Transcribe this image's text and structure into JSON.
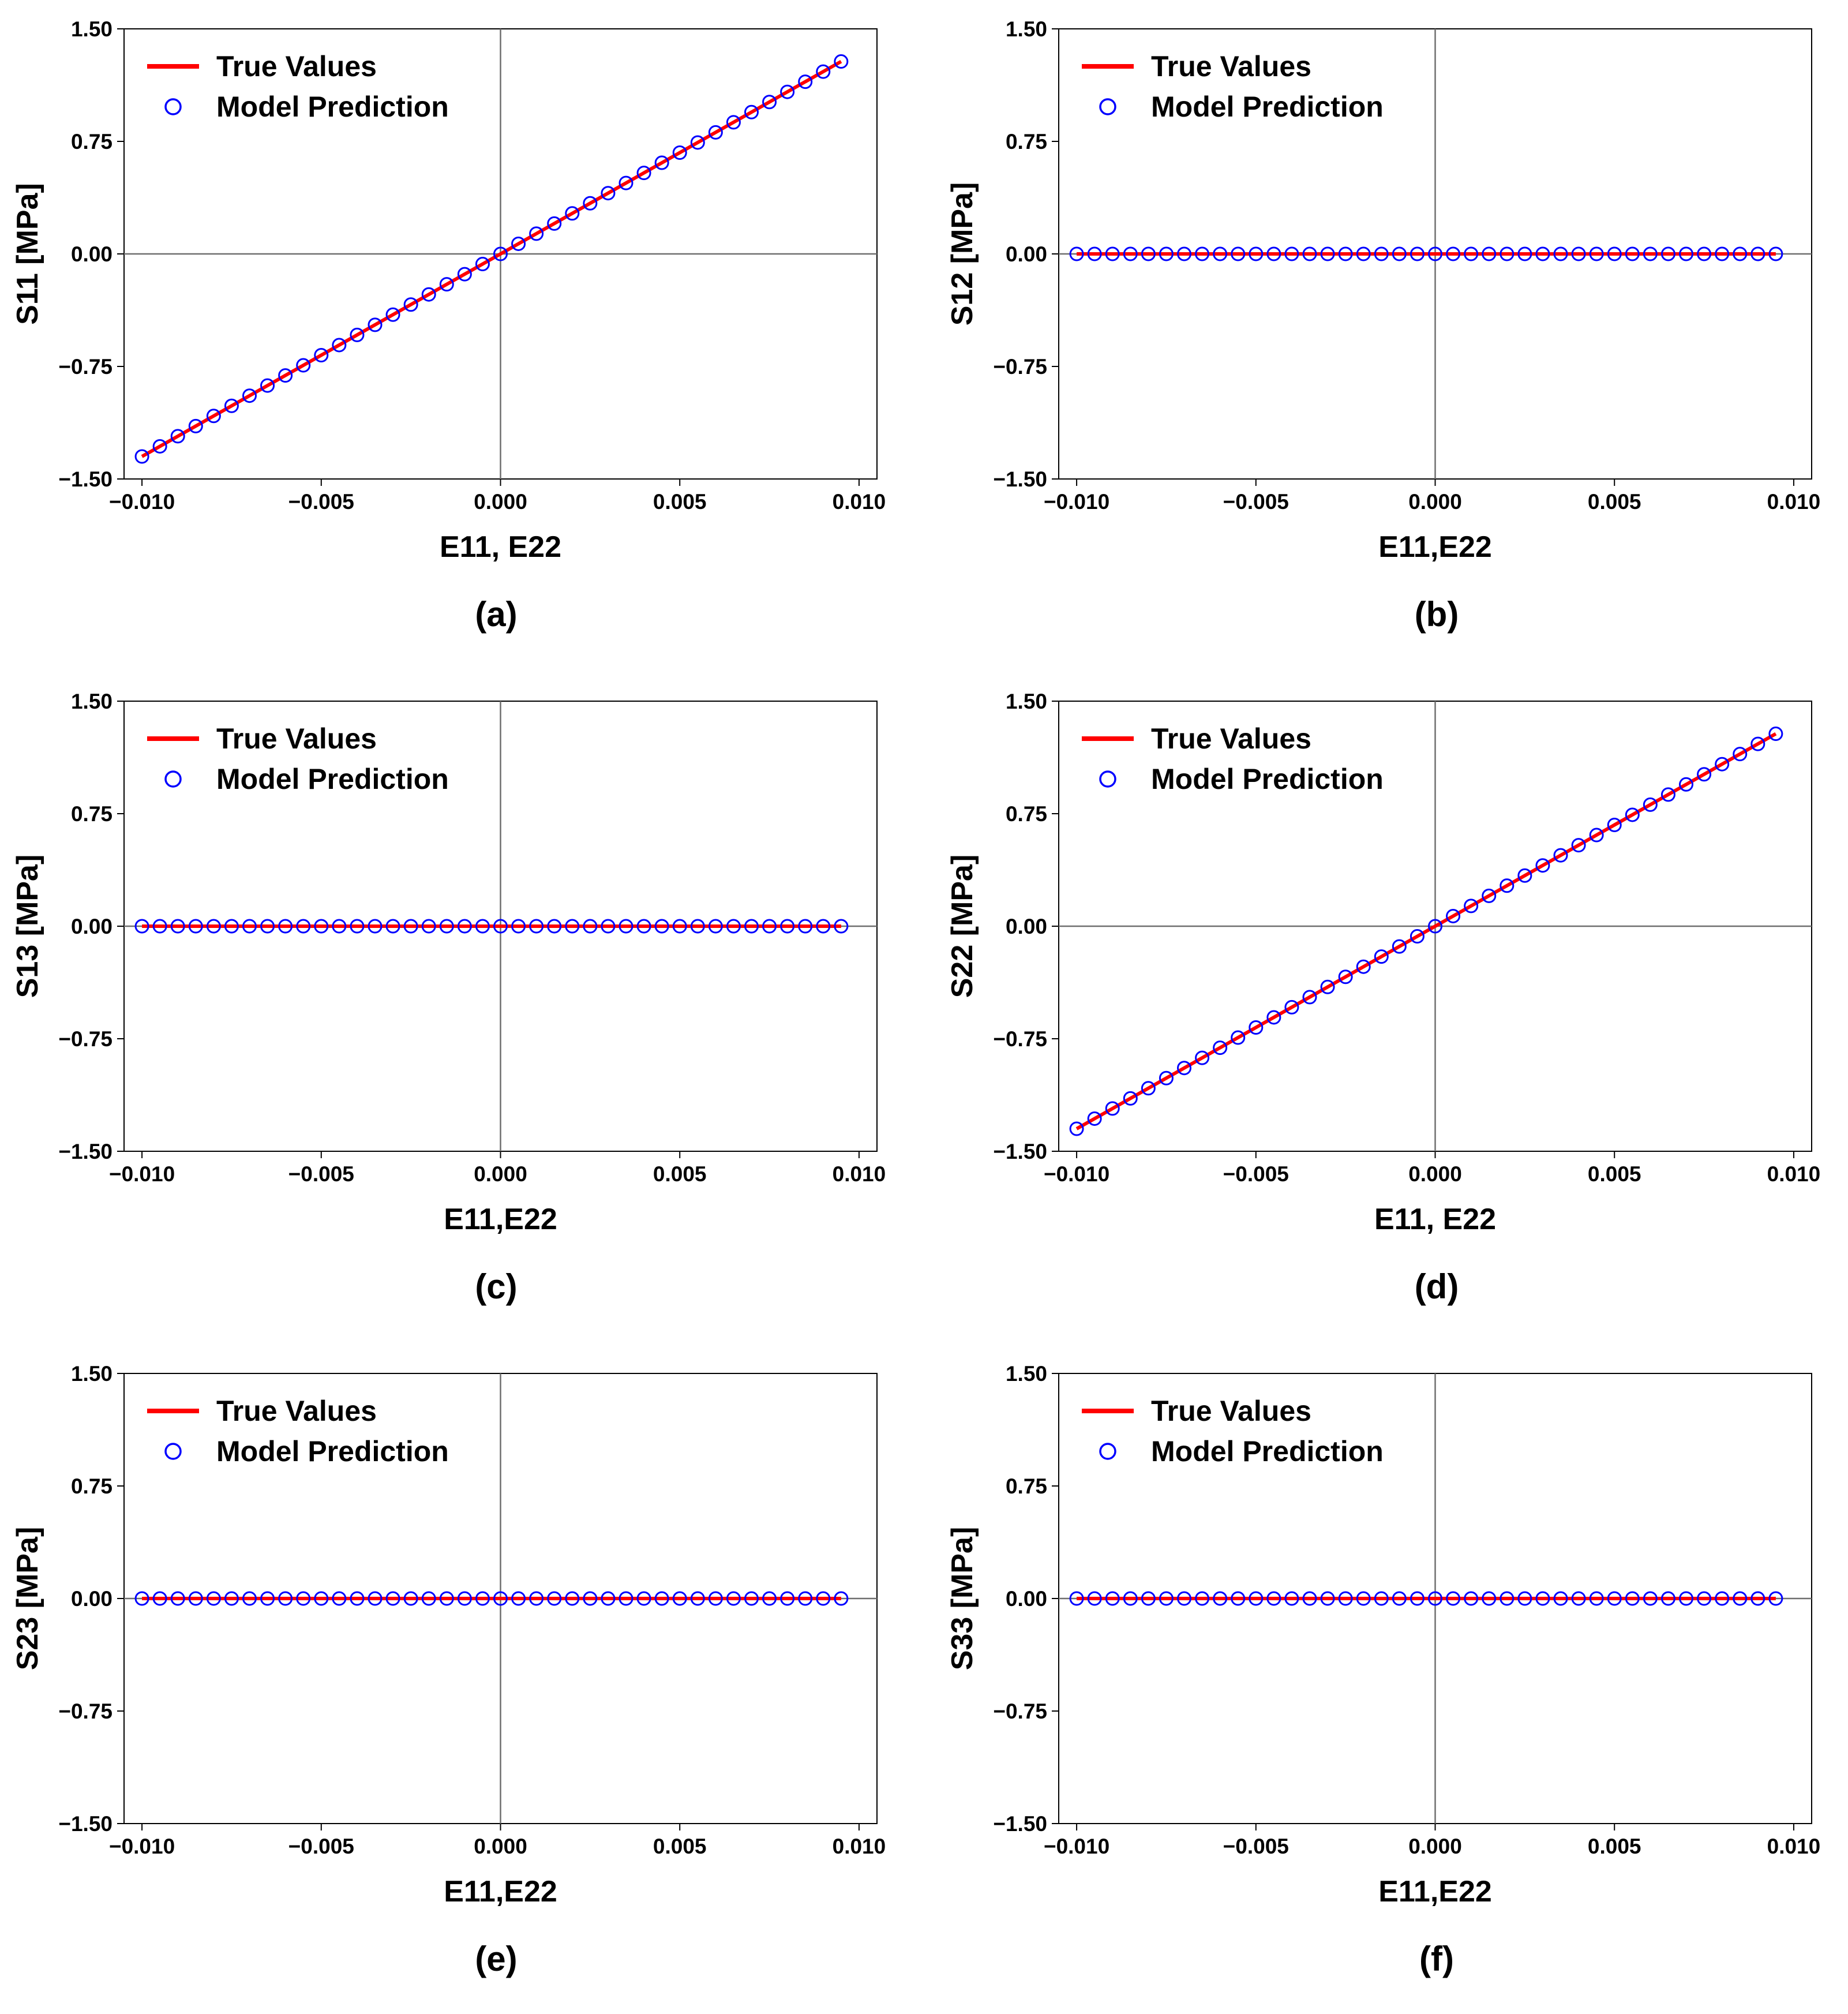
{
  "chart_data": [
    {
      "panel": "a",
      "type": "line",
      "caption": "(a)",
      "xlabel": "E11, E22",
      "ylabel": "S11 [MPa]",
      "xlim": [
        -0.0105,
        0.0105
      ],
      "ylim": [
        -1.5,
        1.5
      ],
      "xticks": [
        "−0.010",
        "−0.005",
        "0.000",
        "0.005",
        "0.010"
      ],
      "yticks": [
        "−1.50",
        "−0.75",
        "0.00",
        "0.75",
        "1.50"
      ],
      "legend": [
        "True Values",
        "Model Prediction"
      ],
      "legend_position": "top-left",
      "slope": 135,
      "series": [
        {
          "name": "True Values",
          "style": "line",
          "color": "#ff0000",
          "x": [
            -0.01,
            0.0095
          ],
          "y": [
            -1.35,
            1.2825
          ]
        },
        {
          "name": "Model Prediction",
          "style": "open-circle",
          "color": "#0000ff",
          "x_start": -0.01,
          "x_step": 0.0005,
          "count": 40
        }
      ]
    },
    {
      "panel": "b",
      "type": "line",
      "caption": "(b)",
      "xlabel": "E11,E22",
      "ylabel": "S12 [MPa]",
      "xlim": [
        -0.0105,
        0.0105
      ],
      "ylim": [
        -1.5,
        1.5
      ],
      "xticks": [
        "−0.010",
        "−0.005",
        "0.000",
        "0.005",
        "0.010"
      ],
      "yticks": [
        "−1.50",
        "−0.75",
        "0.00",
        "0.75",
        "1.50"
      ],
      "legend": [
        "True Values",
        "Model Prediction"
      ],
      "legend_position": "top-left",
      "slope": 0,
      "series": [
        {
          "name": "True Values",
          "style": "line",
          "color": "#ff0000",
          "x": [
            -0.01,
            0.0095
          ],
          "y": [
            0,
            0
          ]
        },
        {
          "name": "Model Prediction",
          "style": "open-circle",
          "color": "#0000ff",
          "x_start": -0.01,
          "x_step": 0.0005,
          "count": 40
        }
      ]
    },
    {
      "panel": "c",
      "type": "line",
      "caption": "(c)",
      "xlabel": "E11,E22",
      "ylabel": "S13 [MPa]",
      "xlim": [
        -0.0105,
        0.0105
      ],
      "ylim": [
        -1.5,
        1.5
      ],
      "xticks": [
        "−0.010",
        "−0.005",
        "0.000",
        "0.005",
        "0.010"
      ],
      "yticks": [
        "−1.50",
        "−0.75",
        "0.00",
        "0.75",
        "1.50"
      ],
      "legend": [
        "True Values",
        "Model Prediction"
      ],
      "legend_position": "top-left",
      "slope": 0,
      "series": [
        {
          "name": "True Values",
          "style": "line",
          "color": "#ff0000",
          "x": [
            -0.01,
            0.0095
          ],
          "y": [
            0,
            0
          ]
        },
        {
          "name": "Model Prediction",
          "style": "open-circle",
          "color": "#0000ff",
          "x_start": -0.01,
          "x_step": 0.0005,
          "count": 40
        }
      ]
    },
    {
      "panel": "d",
      "type": "line",
      "caption": "(d)",
      "xlabel": "E11, E22",
      "ylabel": "S22 [MPa]",
      "xlim": [
        -0.0105,
        0.0105
      ],
      "ylim": [
        -1.5,
        1.5
      ],
      "xticks": [
        "−0.010",
        "−0.005",
        "0.000",
        "0.005",
        "0.010"
      ],
      "yticks": [
        "−1.50",
        "−0.75",
        "0.00",
        "0.75",
        "1.50"
      ],
      "legend": [
        "True Values",
        "Model Prediction"
      ],
      "legend_position": "top-left",
      "slope": 135,
      "series": [
        {
          "name": "True Values",
          "style": "line",
          "color": "#ff0000",
          "x": [
            -0.01,
            0.0095
          ],
          "y": [
            -1.35,
            1.2825
          ]
        },
        {
          "name": "Model Prediction",
          "style": "open-circle",
          "color": "#0000ff",
          "x_start": -0.01,
          "x_step": 0.0005,
          "count": 40
        }
      ]
    },
    {
      "panel": "e",
      "type": "line",
      "caption": "(e)",
      "xlabel": "E11,E22",
      "ylabel": "S23 [MPa]",
      "xlim": [
        -0.0105,
        0.0105
      ],
      "ylim": [
        -1.5,
        1.5
      ],
      "xticks": [
        "−0.010",
        "−0.005",
        "0.000",
        "0.005",
        "0.010"
      ],
      "yticks": [
        "−1.50",
        "−0.75",
        "0.00",
        "0.75",
        "1.50"
      ],
      "legend": [
        "True Values",
        "Model Prediction"
      ],
      "legend_position": "top-left",
      "slope": 0,
      "series": [
        {
          "name": "True Values",
          "style": "line",
          "color": "#ff0000",
          "x": [
            -0.01,
            0.0095
          ],
          "y": [
            0,
            0
          ]
        },
        {
          "name": "Model Prediction",
          "style": "open-circle",
          "color": "#0000ff",
          "x_start": -0.01,
          "x_step": 0.0005,
          "count": 40
        }
      ]
    },
    {
      "panel": "f",
      "type": "line",
      "caption": "(f)",
      "xlabel": "E11,E22",
      "ylabel": "S33 [MPa]",
      "xlim": [
        -0.0105,
        0.0105
      ],
      "ylim": [
        -1.5,
        1.5
      ],
      "xticks": [
        "−0.010",
        "−0.005",
        "0.000",
        "0.005",
        "0.010"
      ],
      "yticks": [
        "−1.50",
        "−0.75",
        "0.00",
        "0.75",
        "1.50"
      ],
      "legend": [
        "True Values",
        "Model Prediction"
      ],
      "legend_position": "top-left",
      "slope": 0,
      "series": [
        {
          "name": "True Values",
          "style": "line",
          "color": "#ff0000",
          "x": [
            -0.01,
            0.0095
          ],
          "y": [
            0,
            0
          ]
        },
        {
          "name": "Model Prediction",
          "style": "open-circle",
          "color": "#0000ff",
          "x_start": -0.01,
          "x_step": 0.0005,
          "count": 40
        }
      ]
    }
  ]
}
